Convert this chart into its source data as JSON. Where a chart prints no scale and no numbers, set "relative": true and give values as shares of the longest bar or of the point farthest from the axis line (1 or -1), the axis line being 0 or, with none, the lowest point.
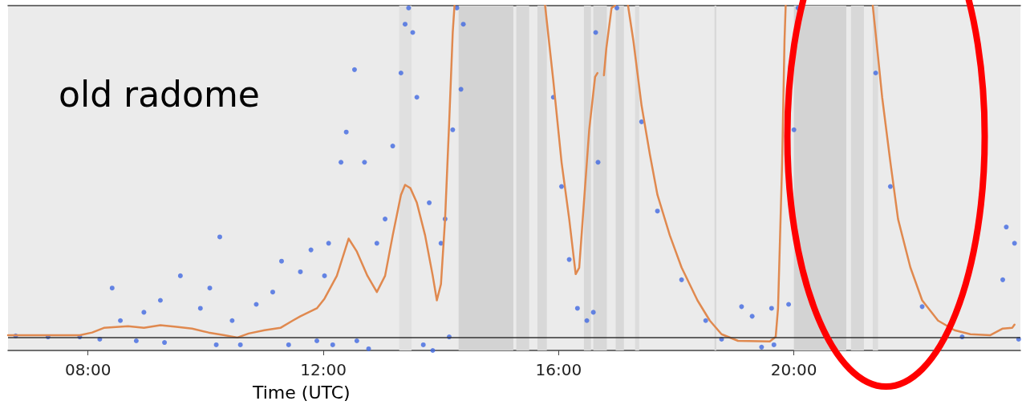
{
  "chart_data": {
    "type": "line",
    "relative": true,
    "xlabel": "Time (UTC)",
    "annotations": [
      "old radome"
    ],
    "xlim": [
      6.64,
      23.85
    ],
    "xticks": [
      {
        "value": 8,
        "label": "08:00"
      },
      {
        "value": 12,
        "label": "12:00"
      },
      {
        "value": 16,
        "label": "16:00"
      },
      {
        "value": 20,
        "label": "20:00"
      }
    ],
    "grid": false,
    "series": [
      {
        "type": "scatter",
        "color": "#4169e1",
        "marker": "circle",
        "x": [
          6.77,
          7.32,
          7.86,
          8.2,
          8.41,
          8.55,
          8.82,
          8.95,
          9.23,
          9.3,
          9.57,
          9.91,
          10.07,
          10.18,
          10.24,
          10.45,
          10.59,
          10.86,
          11.14,
          11.29,
          11.41,
          11.61,
          11.79,
          11.89,
          12.02,
          12.09,
          12.16,
          12.3,
          12.39,
          12.53,
          12.57,
          12.7,
          12.77,
          12.91,
          13.05,
          13.18,
          13.32,
          13.39,
          13.45,
          13.52,
          13.59,
          13.7,
          13.8,
          13.86,
          14.0,
          14.07,
          14.14,
          14.2,
          14.27,
          14.34,
          14.38,
          15.91,
          16.05,
          16.18,
          16.32,
          16.48,
          16.59,
          16.63,
          16.67,
          16.99,
          17.41,
          17.68,
          18.09,
          18.5,
          18.77,
          19.11,
          19.29,
          19.45,
          19.62,
          19.66,
          19.91,
          20.0,
          20.07,
          21.39,
          21.64,
          22.18,
          22.86,
          23.55,
          23.61,
          23.75,
          23.82
        ],
        "values": [
          0.005,
          0.002,
          0.002,
          -0.005,
          0.149,
          0.051,
          -0.01,
          0.076,
          0.112,
          -0.015,
          0.186,
          0.088,
          0.149,
          -0.022,
          0.303,
          0.051,
          -0.022,
          0.1,
          0.137,
          0.23,
          -0.022,
          0.198,
          0.264,
          -0.01,
          0.186,
          0.284,
          -0.022,
          0.528,
          0.619,
          0.807,
          -0.01,
          0.528,
          -0.034,
          0.284,
          0.357,
          0.577,
          0.797,
          0.944,
          0.993,
          0.919,
          0.724,
          -0.022,
          0.406,
          -0.039,
          0.284,
          0.357,
          0.002,
          0.626,
          0.993,
          0.748,
          0.944,
          0.724,
          0.455,
          0.235,
          0.088,
          0.051,
          0.076,
          0.919,
          0.528,
          0.993,
          0.65,
          0.381,
          0.174,
          0.051,
          -0.005,
          0.093,
          0.064,
          -0.029,
          0.088,
          -0.022,
          0.1,
          0.626,
          0.993,
          0.797,
          0.455,
          0.093,
          0.002,
          0.174,
          0.333,
          0.284,
          -0.005
        ]
      },
      {
        "color": "#e0894f",
        "marker": "none",
        "line_style": "solid",
        "x": [
          6.64,
          7.86,
          8.07,
          8.27,
          8.68,
          8.95,
          9.23,
          9.5,
          9.77,
          10.05,
          10.32,
          10.54,
          10.73,
          11.0,
          11.27,
          11.48,
          11.61,
          11.75,
          11.89,
          12.02,
          12.23,
          12.43,
          12.57,
          12.75,
          12.91,
          13.05,
          13.18,
          13.32,
          13.39,
          13.48,
          13.59,
          13.73,
          13.86,
          13.93,
          14.0,
          14.07,
          14.14,
          14.2,
          14.23,
          15.0,
          15.77,
          15.91,
          16.05,
          16.18,
          16.29,
          16.35,
          16.43,
          16.52,
          16.62,
          16.66,
          16.7,
          16.77,
          16.81,
          16.9,
          16.96,
          17.05,
          17.18,
          17.27,
          17.41,
          17.55,
          17.68,
          17.89,
          18.09,
          18.36,
          18.57,
          18.77,
          19.05,
          19.59,
          19.69,
          19.73,
          19.8,
          19.84,
          19.86,
          20.5,
          21.34,
          21.43,
          21.5,
          21.64,
          21.77,
          21.98,
          22.18,
          22.45,
          22.73,
          23.0,
          23.34,
          23.55,
          23.71,
          23.75
        ],
        "values": [
          0.007,
          0.007,
          0.015,
          0.029,
          0.034,
          0.029,
          0.037,
          0.032,
          0.027,
          0.015,
          0.007,
          0,
          0.012,
          0.022,
          0.029,
          0.051,
          0.064,
          0.076,
          0.088,
          0.117,
          0.186,
          0.298,
          0.259,
          0.186,
          0.137,
          0.186,
          0.308,
          0.43,
          0.46,
          0.45,
          0.406,
          0.308,
          0.186,
          0.112,
          0.161,
          0.357,
          0.65,
          0.919,
          1.0,
          null,
          1.0,
          0.773,
          0.528,
          0.357,
          0.191,
          0.21,
          0.406,
          0.626,
          0.785,
          0.797,
          null,
          0.79,
          0.87,
          0.993,
          1.0,
          null,
          1.0,
          0.895,
          0.699,
          0.553,
          0.43,
          0.308,
          0.211,
          0.112,
          0.051,
          0.01,
          -0.01,
          -0.012,
          0.002,
          0.088,
          0.528,
          0.895,
          1.0,
          null,
          1.0,
          0.846,
          0.724,
          0.528,
          0.357,
          0.211,
          0.112,
          0.051,
          0.022,
          0.01,
          0.007,
          0.027,
          0.029,
          0.039
        ]
      }
    ],
    "ref_lines": [
      {
        "axis": "y",
        "value": 0,
        "color": "#333333"
      }
    ],
    "bands": [
      {
        "axis": "x",
        "from": 13.29,
        "to": 13.5,
        "color": "#e0e0e0"
      },
      {
        "axis": "x",
        "from": 14.3,
        "to": 15.23,
        "color": "#d3d3d3"
      },
      {
        "axis": "x",
        "from": 15.28,
        "to": 15.5,
        "color": "#d8d8d8"
      },
      {
        "axis": "x",
        "from": 15.64,
        "to": 15.8,
        "color": "#d8d8d8"
      },
      {
        "axis": "x",
        "from": 16.43,
        "to": 16.55,
        "color": "#d8d8d8"
      },
      {
        "axis": "x",
        "from": 16.59,
        "to": 16.82,
        "color": "#d8d8d8"
      },
      {
        "axis": "x",
        "from": 16.97,
        "to": 17.11,
        "color": "#d8d8d8"
      },
      {
        "axis": "x",
        "from": 17.3,
        "to": 17.37,
        "color": "#dcdcdc"
      },
      {
        "axis": "x",
        "from": 18.65,
        "to": 18.68,
        "color": "#d8d8d8"
      },
      {
        "axis": "x",
        "from": 20.0,
        "to": 20.89,
        "color": "#d3d3d3"
      },
      {
        "axis": "x",
        "from": 20.97,
        "to": 21.19,
        "color": "#d8d8d8"
      },
      {
        "axis": "x",
        "from": 21.34,
        "to": 21.43,
        "color": "#dcdcdc"
      }
    ]
  }
}
